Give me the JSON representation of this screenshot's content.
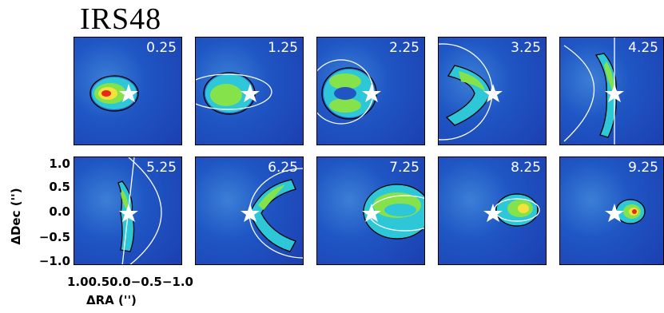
{
  "title": "IRS48",
  "panels": {
    "p0": "0.25",
    "p1": "1.25",
    "p2": "2.25",
    "p3": "3.25",
    "p4": "4.25",
    "p5": "5.25",
    "p6": "6.25",
    "p7": "7.25",
    "p8": "8.25",
    "p9": "9.25"
  },
  "axes": {
    "ylabel": "ΔDec ('')",
    "xlabel": "ΔRA ('')",
    "yticks": [
      "1.0",
      "0.5",
      "0.0",
      "−0.5",
      "−1.0"
    ],
    "xticks": "1.00.50.0−0.5−1.0"
  },
  "colors": {
    "background": "#1f4fc0",
    "emission_cyan": "#29c9d8",
    "emission_green": "#7fe04a",
    "emission_yellow": "#f1e33a",
    "emission_red": "#e8281c"
  }
}
